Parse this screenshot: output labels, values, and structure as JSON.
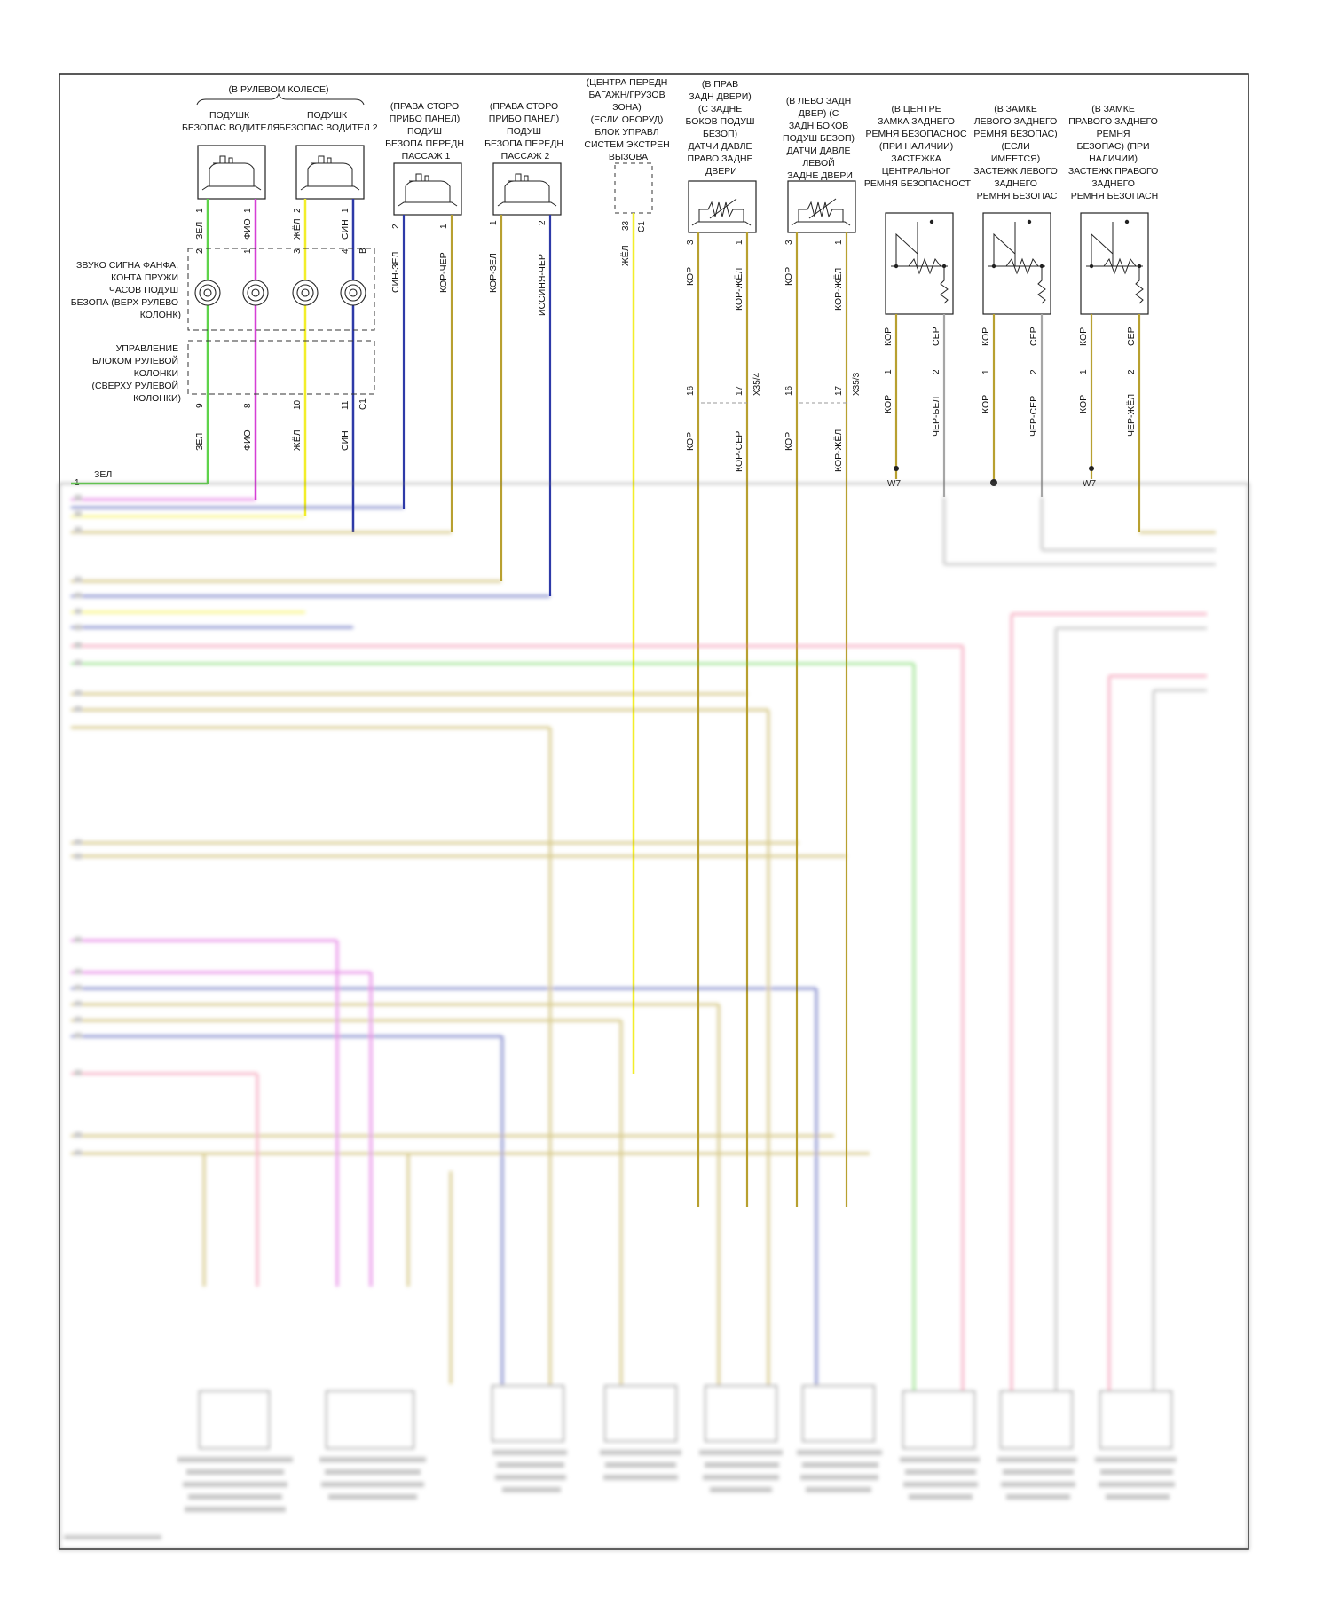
{
  "steering_wheel": {
    "header": "(В РУЛЕВОМ КОЛЕСЕ)",
    "airbag1": [
      "ПОДУШК",
      "БЕЗОПАС ВОДИТЕЛЯ"
    ],
    "airbag2": [
      "ПОДУШК",
      "БЕЗОПАС ВОДИТЕЛ 2"
    ],
    "clockspring_label": [
      "ЗВУКО СИГНА ФАНФА,",
      "КОНТА ПРУЖИ",
      "ЧАСОВ ПОДУШ",
      "БЕЗОПА (ВЕРХ РУЛЕВО",
      "КОЛОНК)"
    ],
    "column_module_label": [
      "УПРАВЛЕНИЕ",
      "БЛОКОМ РУЛЕВОЙ",
      "КОЛОНКИ",
      "(СВЕРХУ РУЛЕВОЙ",
      "КОЛОНКИ)"
    ],
    "wires_top": [
      "ЗЕЛ",
      "ФИО",
      "ЖЁЛ",
      "СИН"
    ],
    "wires_bottom": [
      "ЗЕЛ",
      "ФИО",
      "ЖЁЛ",
      "СИН"
    ],
    "pins_top": [
      "1",
      "1",
      "2",
      "1"
    ],
    "pins_mid": [
      "2",
      "1",
      "3",
      "4"
    ],
    "pins_bottom": [
      "9",
      "8",
      "10",
      "11"
    ],
    "connector_b": "B",
    "connector_c1": "C1"
  },
  "passenger_airbag1": {
    "label": [
      "(ПРАВА СТОРО",
      "ПРИБО ПАНЕЛ)",
      "ПОДУШ",
      "БЕЗОПА ПЕРЕДН",
      "ПАССАЖ 1"
    ],
    "pins": [
      "2",
      "1"
    ],
    "wires": [
      "СИН-ЗЕЛ",
      "КОР-ЧЕР"
    ]
  },
  "passenger_airbag2": {
    "label": [
      "(ПРАВА СТОРО",
      "ПРИБО ПАНЕЛ)",
      "ПОДУШ",
      "БЕЗОПА ПЕРЕДН",
      "ПАССАЖ 2"
    ],
    "pins": [
      "1",
      "2"
    ],
    "wires": [
      "КОР-ЗЕЛ",
      "ИССИНЯ-ЧЕР"
    ]
  },
  "emergency_call": {
    "label": [
      "(ЦЕНТРА ПЕРЕДН",
      "БАГАЖН/ГРУЗОВ",
      "ЗОНА)",
      "(ЕСЛИ ОБОРУД)",
      "БЛОК УПРАВЛ",
      "СИСТЕМ ЭКСТРЕН",
      "ВЫЗОВА"
    ],
    "pin": "33",
    "connector": "C1",
    "wire": "ЖЁЛ"
  },
  "right_rear_sensor": {
    "label": [
      "(В ПРАВ",
      "ЗАДН ДВЕРИ)",
      "(С ЗАДНЕ",
      "БОКОВ ПОДУШ",
      "БЕЗОП)",
      "ДАТЧИ ДАВЛЕ",
      "ПРАВО ЗАДНЕ",
      "ДВЕРИ"
    ],
    "pins": [
      "3",
      "1"
    ],
    "wires_top": [
      "КОР",
      "КОР-ЖЁЛ"
    ],
    "pins_conn": [
      "16",
      "17"
    ],
    "connector": "X35/4",
    "wires_bottom": [
      "КОР",
      "КОР-СЕР"
    ]
  },
  "left_rear_sensor": {
    "label": [
      "(В ЛЕВО ЗАДН",
      "ДВЕР) (С",
      "ЗАДН БОКОВ",
      "ПОДУШ БЕЗОП)",
      "ДАТЧИ ДАВЛЕ",
      "ЛЕВОЙ",
      "ЗАДНЕ ДВЕРИ"
    ],
    "pins": [
      "3",
      "1"
    ],
    "wires_top": [
      "КОР",
      "КОР-ЖЁЛ"
    ],
    "pins_conn": [
      "16",
      "17"
    ],
    "connector": "X35/3",
    "wires_bottom": [
      "КОР",
      "КОР-ЖЁЛ"
    ]
  },
  "center_buckle": {
    "label": [
      "(В ЦЕНТРЕ",
      "ЗАМКА ЗАДНЕГО",
      "РЕМНЯ БЕЗОПАСНОС",
      "(ПРИ НАЛИЧИИ)",
      "ЗАСТЕЖКА",
      "ЦЕНТРАЛЬНОГ",
      "РЕМНЯ БЕЗОПАСНОСТ"
    ],
    "wires_top": [
      "КОР",
      "СЕР"
    ],
    "pins": [
      "1",
      "2"
    ],
    "wires_bottom": [
      "КОР",
      "ЧЕР-БЕЛ"
    ],
    "ground": "W7"
  },
  "left_buckle": {
    "label": [
      "(В ЗАМКЕ",
      "ЛЕВОГО ЗАДНЕГО",
      "РЕМНЯ БЕЗОПАС)",
      "(ЕСЛИ",
      "ИМЕЕТСЯ)",
      "ЗАСТЕЖК ЛЕВОГО",
      "ЗАДНЕГО",
      "РЕМНЯ БЕЗОПАС"
    ],
    "wires_top": [
      "КОР",
      "СЕР"
    ],
    "pins": [
      "1",
      "2"
    ],
    "wires_bottom": [
      "КОР",
      "ЧЕР-СЕР"
    ]
  },
  "right_buckle": {
    "label": [
      "(В ЗАМКЕ",
      "ПРАВОГО ЗАДНЕГО",
      "РЕМНЯ",
      "БЕЗОПАС) (ПРИ",
      "НАЛИЧИИ)",
      "ЗАСТЕЖК ПРАВОГО",
      "ЗАДНЕГО",
      "РЕМНЯ БЕЗОПАСН"
    ],
    "wires_top": [
      "КОР",
      "СЕР"
    ],
    "pins": [
      "1",
      "2"
    ],
    "wires_bottom": [
      "КОР",
      "ЧЕР-ЖЁЛ"
    ],
    "ground": "W7"
  },
  "module_row": {
    "pin1": "1",
    "wire1": "ЗЕЛ"
  },
  "colors": {
    "green": "#5ed34a",
    "violet": "#d63fd6",
    "yellow": "#f2ee2a",
    "blue": "#2e3aa8",
    "brown": "#b8a030",
    "pink": "#f07a9a",
    "gray": "#a6a6a6",
    "frame": "#222222"
  }
}
